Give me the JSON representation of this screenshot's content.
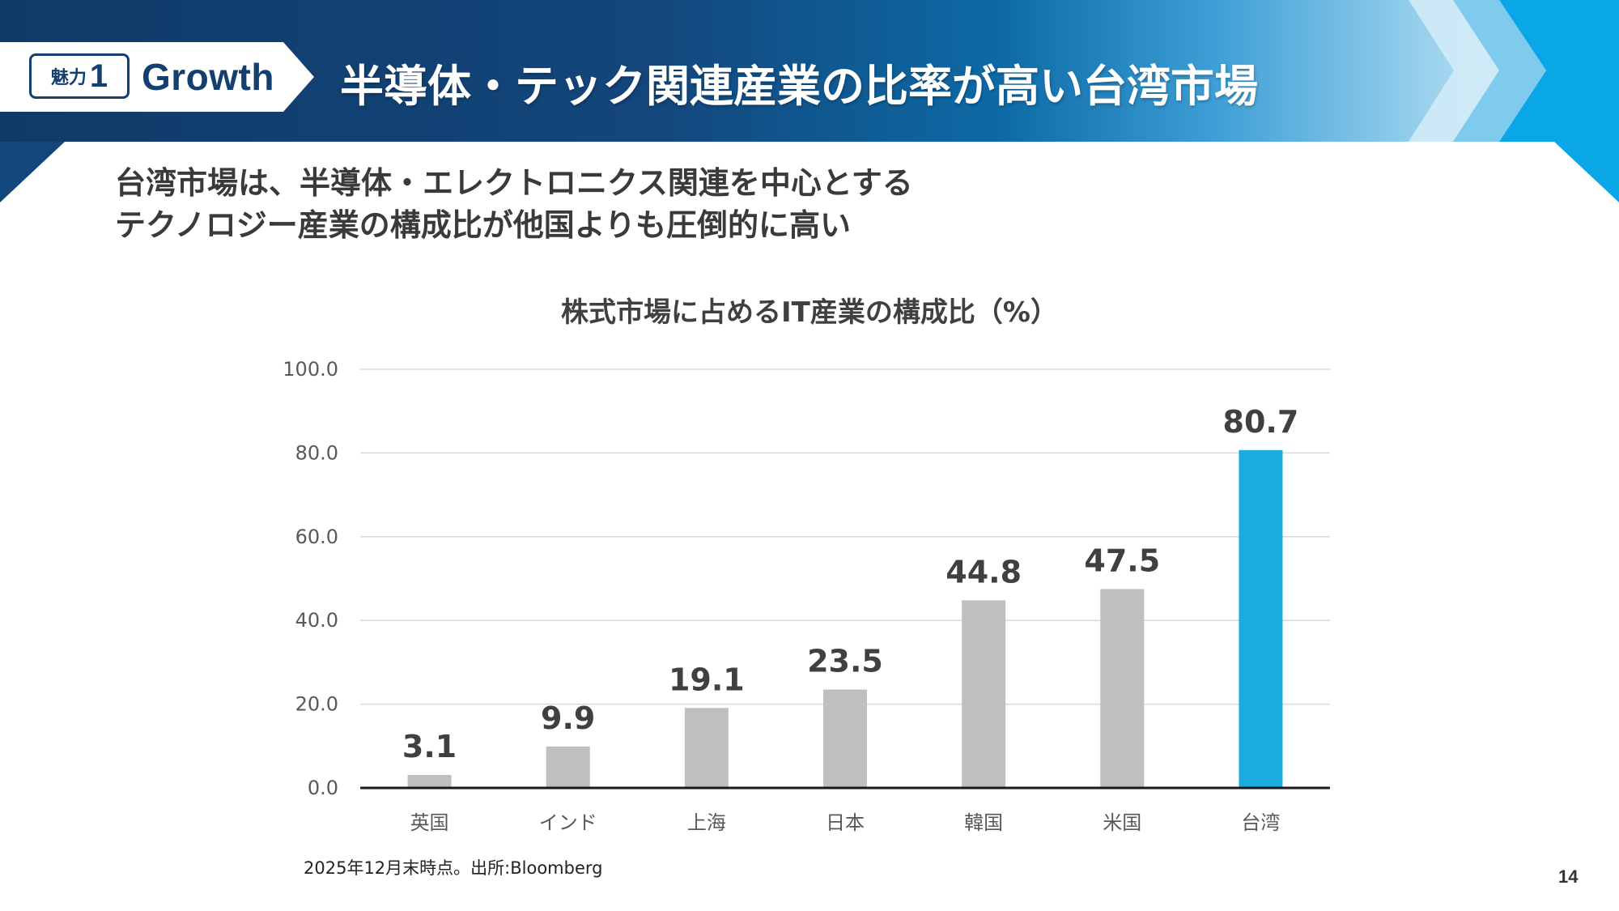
{
  "header": {
    "badge_small": "魅力",
    "badge_number": "1",
    "badge_label": "Growth",
    "title": "半導体・テック関連産業の比率が高い台湾市場"
  },
  "lead": {
    "line1": "台湾市場は、半導体・エレクトロニクス関連を中心とする",
    "line2": "テクノロジー産業の構成比が他国よりも圧倒的に高い"
  },
  "chart_data": {
    "type": "bar",
    "title": "株式市場に占めるIT産業の構成比（%）",
    "categories": [
      "英国",
      "インド",
      "上海",
      "日本",
      "韓国",
      "米国",
      "台湾"
    ],
    "values": [
      3.1,
      9.9,
      19.1,
      23.5,
      44.8,
      47.5,
      80.7
    ],
    "value_labels": [
      "3.1",
      "9.9",
      "19.1",
      "23.5",
      "44.8",
      "47.5",
      "80.7"
    ],
    "ylim": [
      0,
      100
    ],
    "yticks": [
      "0.0",
      "20.0",
      "40.0",
      "60.0",
      "80.0",
      "100.0"
    ],
    "grid": true,
    "colors": {
      "default_bar": "#bfbfbf",
      "highlight_bar": "#1aace0",
      "highlight_category": "台湾",
      "gridline": "#d9d9d9",
      "baseline": "#1a1a1a"
    },
    "xlabel": "",
    "ylabel": ""
  },
  "footnote": "2025年12月末時点。出所:Bloomberg",
  "page_number": "14"
}
